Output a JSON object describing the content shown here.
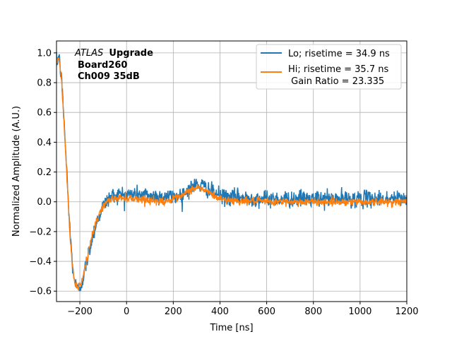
{
  "chart_data": {
    "type": "line",
    "xlabel": "Time [ns]",
    "ylabel": "Normalized Amplitude (A.U.)",
    "xlim": [
      -300,
      1200
    ],
    "ylim": [
      -0.67,
      1.08
    ],
    "xticks": [
      -200,
      0,
      200,
      400,
      600,
      800,
      1000,
      1200
    ],
    "yticks": [
      -0.6,
      -0.4,
      -0.2,
      0.0,
      0.2,
      0.4,
      0.6,
      0.8,
      1.0
    ],
    "grid": true,
    "legend_position": "top-right",
    "annotations": [
      {
        "italic": "ATLAS",
        "bold": "Upgrade"
      },
      {
        "bold": "Board260"
      },
      {
        "bold": "Ch009 35dB"
      }
    ],
    "legend": {
      "gain_ratio_label": " Gain Ratio = 23.335"
    },
    "series": [
      {
        "name": "Lo; risetime = 34.9 ns",
        "color": "#1f77b4",
        "noise": 0.028,
        "x": [
          -300,
          -290,
          -280,
          -270,
          -260,
          -250,
          -240,
          -230,
          -220,
          -210,
          -200,
          -190,
          -180,
          -170,
          -160,
          -150,
          -140,
          -130,
          -120,
          -110,
          -100,
          -90,
          -80,
          -70,
          -60,
          -50,
          -40,
          -30,
          -20,
          -10,
          0,
          20,
          40,
          60,
          80,
          100,
          120,
          140,
          160,
          180,
          200,
          220,
          240,
          260,
          280,
          300,
          320,
          340,
          360,
          380,
          400,
          420,
          440,
          460,
          480,
          500,
          550,
          600,
          650,
          700,
          750,
          800,
          850,
          900,
          950,
          1000,
          1050,
          1100,
          1150,
          1200
        ],
        "y": [
          0.93,
          0.98,
          0.85,
          0.62,
          0.32,
          0.02,
          -0.25,
          -0.45,
          -0.55,
          -0.59,
          -0.575,
          -0.53,
          -0.47,
          -0.4,
          -0.33,
          -0.26,
          -0.2,
          -0.15,
          -0.1,
          -0.06,
          -0.03,
          -0.005,
          0.015,
          0.03,
          0.04,
          0.045,
          0.048,
          0.05,
          0.05,
          0.05,
          0.05,
          0.05,
          0.05,
          0.05,
          0.045,
          0.045,
          0.04,
          0.035,
          0.035,
          0.035,
          0.035,
          0.04,
          0.05,
          0.075,
          0.1,
          0.115,
          0.11,
          0.095,
          0.075,
          0.055,
          0.04,
          0.035,
          0.03,
          0.03,
          0.03,
          0.025,
          0.025,
          0.02,
          0.02,
          0.02,
          0.02,
          0.02,
          0.02,
          0.02,
          0.02,
          0.02,
          0.02,
          0.02,
          0.02,
          0.02
        ]
      },
      {
        "name": "Hi; risetime = 35.7 ns",
        "color": "#ff7f0e",
        "noise": 0.013,
        "x": [
          -300,
          -290,
          -280,
          -270,
          -260,
          -250,
          -240,
          -230,
          -220,
          -210,
          -200,
          -190,
          -180,
          -170,
          -160,
          -150,
          -140,
          -130,
          -120,
          -110,
          -100,
          -90,
          -80,
          -70,
          -60,
          -50,
          -40,
          -30,
          -20,
          -10,
          0,
          20,
          40,
          60,
          80,
          100,
          120,
          140,
          160,
          180,
          200,
          220,
          240,
          260,
          280,
          300,
          320,
          340,
          360,
          380,
          400,
          420,
          440,
          460,
          480,
          500,
          550,
          600,
          650,
          700,
          750,
          800,
          850,
          900,
          950,
          1000,
          1050,
          1100,
          1150,
          1200
        ],
        "y": [
          0.93,
          0.97,
          0.84,
          0.6,
          0.3,
          0.0,
          -0.27,
          -0.46,
          -0.55,
          -0.575,
          -0.56,
          -0.52,
          -0.46,
          -0.39,
          -0.32,
          -0.25,
          -0.19,
          -0.14,
          -0.09,
          -0.055,
          -0.03,
          -0.01,
          0.005,
          0.015,
          0.02,
          0.025,
          0.025,
          0.025,
          0.025,
          0.025,
          0.025,
          0.025,
          0.02,
          0.02,
          0.015,
          0.01,
          0.005,
          0.005,
          0.005,
          0.01,
          0.015,
          0.025,
          0.04,
          0.065,
          0.085,
          0.095,
          0.09,
          0.075,
          0.055,
          0.035,
          0.02,
          0.015,
          0.01,
          0.01,
          0.005,
          0.005,
          0.005,
          0.0,
          0.0,
          0.0,
          0.0,
          0.0,
          0.0,
          0.0,
          0.0,
          0.0,
          0.0,
          0.0,
          0.0,
          0.0
        ]
      }
    ]
  }
}
